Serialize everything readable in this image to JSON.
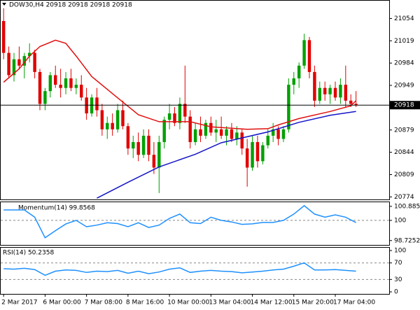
{
  "chart_data": [
    {
      "type": "candlestick",
      "title": "DOW30,H4 20918 20918 20918 20918",
      "up_color": "#00a000",
      "down_color": "#e00000",
      "xlim": [
        -0.7,
        74.4
      ],
      "xticks": [
        {
          "value": 0,
          "label": "2 Mar 2017"
        },
        {
          "value": 8,
          "label": "6 Mar 00:00"
        },
        {
          "value": 16,
          "label": "7 Mar 08:00"
        },
        {
          "value": 24,
          "label": "8 Mar 16:00"
        },
        {
          "value": 32,
          "label": "10 Mar 00:00"
        },
        {
          "value": 40,
          "label": "13 Mar 04:00"
        },
        {
          "value": 48,
          "label": "14 Mar 12:00"
        },
        {
          "value": 56,
          "label": "15 Mar 20:00"
        },
        {
          "value": 64,
          "label": "17 Mar 04:00"
        }
      ],
      "ylim": [
        20770,
        21083
      ],
      "yticks": [
        21054,
        21019,
        20984,
        20949,
        20879,
        20844,
        20809,
        20774
      ],
      "last_price": 20918,
      "open": [
        21050,
        21000,
        20965,
        20990,
        20980,
        20995,
        21000,
        20970,
        20920,
        20940,
        20965,
        20950,
        20945,
        20960,
        20945,
        20950,
        20930,
        20905,
        20930,
        20910,
        20880,
        20890,
        20880,
        20910,
        20885,
        20850,
        20860,
        20840,
        20870,
        20840,
        20820,
        20860,
        20895,
        20905,
        20890,
        20920,
        20900,
        20860,
        20880,
        20870,
        20890,
        20875,
        20880,
        20870,
        20880,
        20865,
        20875,
        20850,
        20820,
        20860,
        20830,
        20855,
        20870,
        20880,
        20865,
        20880,
        20950,
        20960,
        20980,
        21020,
        20970,
        20925,
        20945,
        20935,
        20945,
        20930,
        20950,
        20925,
        20920
      ],
      "high": [
        21070,
        21010,
        21000,
        21010,
        21000,
        21015,
        21005,
        20975,
        20945,
        20970,
        20980,
        20975,
        20970,
        20975,
        20960,
        20965,
        20945,
        20935,
        20945,
        20920,
        20900,
        20905,
        20920,
        20925,
        20890,
        20870,
        20875,
        20880,
        20880,
        20860,
        20870,
        20900,
        20920,
        20915,
        20930,
        20980,
        20910,
        20890,
        20900,
        20895,
        20900,
        20895,
        20900,
        20885,
        20890,
        20885,
        20880,
        20865,
        20870,
        20870,
        20860,
        20880,
        20890,
        20885,
        20885,
        20960,
        20970,
        20985,
        21030,
        21025,
        20980,
        20955,
        20955,
        20950,
        20955,
        20960,
        20980,
        20935,
        20940
      ],
      "low": [
        20990,
        20960,
        20955,
        20975,
        20960,
        20985,
        20960,
        20910,
        20910,
        20930,
        20945,
        20930,
        20935,
        20940,
        20935,
        20925,
        20895,
        20900,
        20900,
        20870,
        20865,
        20870,
        20875,
        20880,
        20840,
        20835,
        20830,
        20835,
        20830,
        20810,
        20780,
        20850,
        20880,
        20885,
        20880,
        20890,
        20850,
        20855,
        20860,
        20865,
        20870,
        20860,
        20865,
        20855,
        20860,
        20855,
        20840,
        20790,
        20815,
        20820,
        20825,
        20850,
        20860,
        20855,
        20860,
        20875,
        20935,
        20945,
        20975,
        20960,
        20915,
        20920,
        20925,
        20920,
        20925,
        20920,
        20915,
        20915,
        20915
      ],
      "close": [
        21000,
        20965,
        20990,
        20980,
        20995,
        21000,
        20970,
        20920,
        20940,
        20965,
        20950,
        20945,
        20960,
        20945,
        20950,
        20930,
        20905,
        20930,
        20910,
        20880,
        20890,
        20880,
        20910,
        20885,
        20850,
        20860,
        20840,
        20870,
        20840,
        20820,
        20860,
        20895,
        20905,
        20890,
        20920,
        20900,
        20860,
        20880,
        20870,
        20890,
        20875,
        20880,
        20870,
        20880,
        20865,
        20875,
        20850,
        20820,
        20860,
        20830,
        20855,
        20870,
        20880,
        20865,
        20880,
        20950,
        20960,
        20980,
        21020,
        20970,
        20925,
        20945,
        20935,
        20945,
        20930,
        20950,
        20925,
        20920,
        20918
      ],
      "overlays": [
        {
          "color": "#e01010",
          "x": [
            0,
            3,
            5,
            7,
            10,
            12,
            14,
            17,
            21,
            26,
            30,
            36,
            40,
            47,
            51,
            53,
            57,
            63,
            67,
            68
          ],
          "values": [
            20954,
            20975,
            20995,
            21010,
            21020,
            21015,
            20995,
            20963,
            20936,
            20903,
            20892,
            20892,
            20884,
            20880,
            20881,
            20887,
            20897,
            20908,
            20917,
            20925
          ]
        },
        {
          "color": "#1414c8",
          "x": [
            18,
            24,
            30,
            37,
            42,
            51,
            57,
            63,
            68
          ],
          "values": [
            20772,
            20797,
            20821,
            20841,
            20859,
            20876,
            20891,
            20902,
            20908
          ]
        }
      ]
    },
    {
      "type": "line",
      "title": "Momentum(14) 99.8568",
      "color": "#1e90ff",
      "ylim": [
        98.45,
        101.19
      ],
      "yticks": [
        100.8852,
        100,
        98.7252
      ],
      "levels": [
        100
      ],
      "x": [
        0,
        2,
        4,
        6,
        8,
        10,
        12,
        14,
        16,
        18,
        20,
        22,
        24,
        26,
        28,
        30,
        32,
        34,
        36,
        38,
        40,
        42,
        44,
        46,
        48,
        50,
        52,
        54,
        56,
        58,
        60,
        62,
        64,
        66,
        68
      ],
      "values": [
        100.66,
        100.66,
        100.66,
        100.2,
        98.9,
        99.35,
        99.77,
        100.0,
        99.6,
        99.7,
        99.85,
        99.8,
        99.6,
        99.85,
        99.55,
        99.7,
        100.13,
        100.4,
        99.85,
        99.8,
        100.2,
        100.0,
        99.9,
        99.75,
        99.78,
        99.87,
        99.87,
        100.0,
        100.4,
        100.93,
        100.4,
        100.2,
        100.35,
        100.2,
        99.86
      ]
    },
    {
      "type": "line",
      "title": "RSI(14) 50.2358",
      "color": "#1e90ff",
      "ylim": [
        -5,
        108.5
      ],
      "yticks": [
        100,
        70,
        30,
        0
      ],
      "levels": [
        70,
        30
      ],
      "x": [
        0,
        2,
        4,
        6,
        8,
        10,
        12,
        14,
        16,
        18,
        20,
        22,
        24,
        26,
        28,
        30,
        32,
        34,
        36,
        38,
        40,
        42,
        44,
        46,
        48,
        50,
        52,
        54,
        56,
        58,
        60,
        62,
        64,
        66,
        68
      ],
      "values": [
        56,
        55,
        57,
        54,
        40,
        50,
        53,
        52,
        47,
        50,
        49,
        52,
        45,
        50,
        44,
        48,
        55,
        58,
        47,
        50,
        52,
        50,
        49,
        46,
        48,
        50,
        53,
        55,
        62,
        70,
        53,
        53,
        54,
        52,
        50
      ]
    }
  ]
}
